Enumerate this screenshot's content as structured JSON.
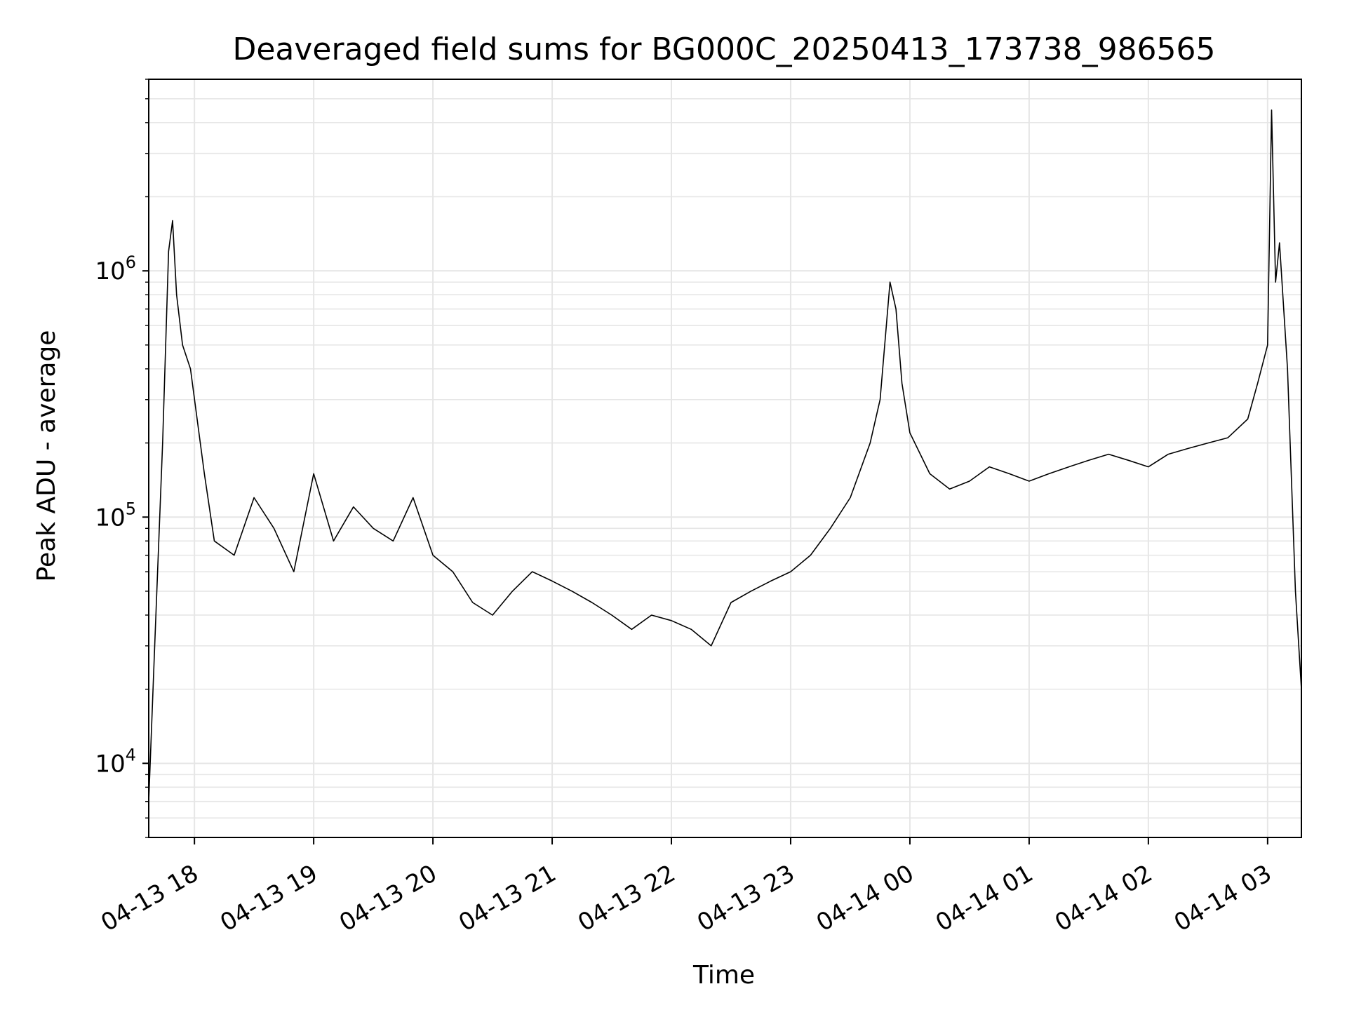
{
  "chart_data": {
    "type": "line",
    "title": "Deaveraged field sums for BG000C_20250413_173738_986565",
    "xlabel": "Time",
    "ylabel": "Peak ADU - average",
    "x_range": [
      "2025-04-13 17:37",
      "2025-04-14 03:17"
    ],
    "x_ticks": [
      {
        "value": "2025-04-13 18:00",
        "label": "04-13 18"
      },
      {
        "value": "2025-04-13 19:00",
        "label": "04-13 19"
      },
      {
        "value": "2025-04-13 20:00",
        "label": "04-13 20"
      },
      {
        "value": "2025-04-13 21:00",
        "label": "04-13 21"
      },
      {
        "value": "2025-04-13 22:00",
        "label": "04-13 22"
      },
      {
        "value": "2025-04-13 23:00",
        "label": "04-13 23"
      },
      {
        "value": "2025-04-14 00:00",
        "label": "04-14 00"
      },
      {
        "value": "2025-04-14 01:00",
        "label": "04-14 01"
      },
      {
        "value": "2025-04-14 02:00",
        "label": "04-14 02"
      },
      {
        "value": "2025-04-14 03:00",
        "label": "04-14 03"
      }
    ],
    "y_scale": "log",
    "ylim": [
      5000,
      6000000
    ],
    "y_ticks": [
      {
        "value": 10000,
        "base": "10",
        "exp": "4"
      },
      {
        "value": 100000,
        "base": "10",
        "exp": "5"
      },
      {
        "value": 1000000,
        "base": "10",
        "exp": "6"
      }
    ],
    "grid": true,
    "line_color": "#000000",
    "grid_color": "#e6e6e6",
    "series": [
      {
        "x": [
          "2025-04-13 17:37",
          "2025-04-13 17:40",
          "2025-04-13 17:44",
          "2025-04-13 17:47",
          "2025-04-13 17:49",
          "2025-04-13 17:51",
          "2025-04-13 17:54",
          "2025-04-13 17:58",
          "2025-04-13 18:05",
          "2025-04-13 18:10",
          "2025-04-13 18:20",
          "2025-04-13 18:30",
          "2025-04-13 18:40",
          "2025-04-13 18:50",
          "2025-04-13 19:00",
          "2025-04-13 19:10",
          "2025-04-13 19:20",
          "2025-04-13 19:30",
          "2025-04-13 19:40",
          "2025-04-13 19:50",
          "2025-04-13 20:00",
          "2025-04-13 20:10",
          "2025-04-13 20:20",
          "2025-04-13 20:30",
          "2025-04-13 20:40",
          "2025-04-13 20:50",
          "2025-04-13 21:00",
          "2025-04-13 21:10",
          "2025-04-13 21:20",
          "2025-04-13 21:30",
          "2025-04-13 21:40",
          "2025-04-13 21:50",
          "2025-04-13 22:00",
          "2025-04-13 22:10",
          "2025-04-13 22:20",
          "2025-04-13 22:30",
          "2025-04-13 22:40",
          "2025-04-13 22:50",
          "2025-04-13 23:00",
          "2025-04-13 23:10",
          "2025-04-13 23:20",
          "2025-04-13 23:30",
          "2025-04-13 23:40",
          "2025-04-13 23:45",
          "2025-04-13 23:50",
          "2025-04-13 23:53",
          "2025-04-13 23:56",
          "2025-04-14 00:00",
          "2025-04-14 00:10",
          "2025-04-14 00:20",
          "2025-04-14 00:30",
          "2025-04-14 00:40",
          "2025-04-14 00:50",
          "2025-04-14 01:00",
          "2025-04-14 01:10",
          "2025-04-14 01:20",
          "2025-04-14 01:30",
          "2025-04-14 01:40",
          "2025-04-14 01:50",
          "2025-04-14 02:00",
          "2025-04-14 02:10",
          "2025-04-14 02:20",
          "2025-04-14 02:30",
          "2025-04-14 02:40",
          "2025-04-14 02:50",
          "2025-04-14 02:55",
          "2025-04-14 03:00",
          "2025-04-14 03:02",
          "2025-04-14 03:04",
          "2025-04-14 03:06",
          "2025-04-14 03:10",
          "2025-04-14 03:14",
          "2025-04-14 03:17"
        ],
        "y": [
          7000,
          30000,
          200000,
          1200000,
          1600000,
          800000,
          500000,
          400000,
          150000,
          80000,
          70000,
          120000,
          90000,
          60000,
          150000,
          80000,
          110000,
          90000,
          80000,
          120000,
          70000,
          60000,
          45000,
          40000,
          50000,
          60000,
          55000,
          50000,
          45000,
          40000,
          35000,
          40000,
          38000,
          35000,
          30000,
          45000,
          50000,
          55000,
          60000,
          70000,
          90000,
          120000,
          200000,
          300000,
          900000,
          700000,
          350000,
          220000,
          150000,
          130000,
          140000,
          160000,
          150000,
          140000,
          150000,
          160000,
          170000,
          180000,
          170000,
          160000,
          180000,
          190000,
          200000,
          210000,
          250000,
          350000,
          500000,
          4500000,
          900000,
          1300000,
          400000,
          50000,
          20000
        ]
      }
    ]
  }
}
